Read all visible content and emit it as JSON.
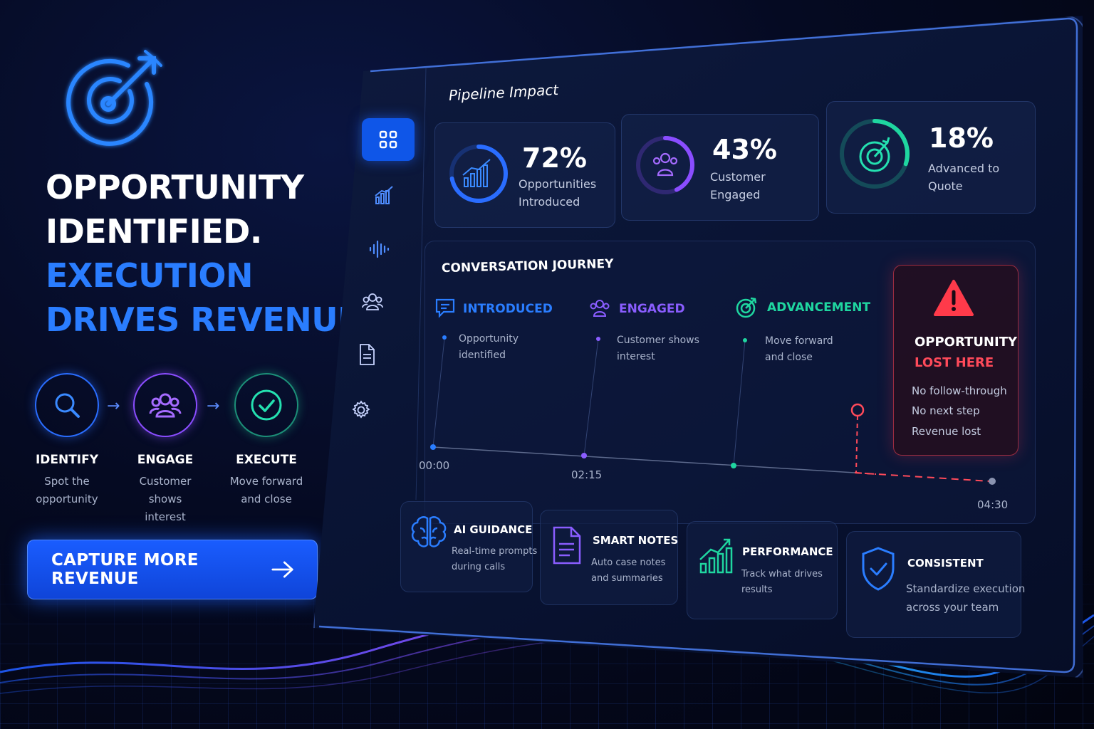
{
  "hero": {
    "headline_line1": "OPPORTUNITY",
    "headline_line2": "IDENTIFIED.",
    "headline_line3": "EXECUTION",
    "headline_line4": "DRIVES REVENUE.",
    "logo_icon": "target-arrow-icon"
  },
  "steps": [
    {
      "title": "IDENTIFY",
      "desc1": "Spot the",
      "desc2": "opportunity",
      "icon": "search-icon"
    },
    {
      "title": "ENGAGE",
      "desc1": "Customer shows",
      "desc2": "interest",
      "icon": "users-icon"
    },
    {
      "title": "EXECUTE",
      "desc1": "Move forward",
      "desc2": "and close",
      "icon": "check-circle-icon"
    }
  ],
  "cta": {
    "label": "CAPTURE MORE REVENUE",
    "icon": "arrow-right-icon"
  },
  "sidebar": {
    "items": [
      {
        "icon": "grid-icon",
        "active": true
      },
      {
        "icon": "bar-chart-icon",
        "active": false
      },
      {
        "icon": "waveform-icon",
        "active": false
      },
      {
        "icon": "users-icon",
        "active": false
      },
      {
        "icon": "document-icon",
        "active": false
      },
      {
        "icon": "gear-icon",
        "active": false
      }
    ]
  },
  "pipeline": {
    "title": "Pipeline Impact",
    "stats": [
      {
        "value": "72%",
        "label1": "Opportunities",
        "label2": "Introduced",
        "icon": "bar-chart-icon",
        "color": "#2a6dff",
        "progress": 0.72
      },
      {
        "value": "43%",
        "label1": "Customer",
        "label2": "Engaged",
        "icon": "users-icon",
        "color": "#8a4dff",
        "progress": 0.43
      },
      {
        "value": "18%",
        "label1": "Advanced to",
        "label2": "Quote",
        "icon": "target-icon",
        "color": "#1fd6a0",
        "progress": 0.18
      }
    ]
  },
  "journey": {
    "title": "CONVERSATION JOURNEY",
    "stages": [
      {
        "name": "INTRODUCED",
        "desc1": "Opportunity",
        "desc2": "identified",
        "icon": "chat-icon",
        "color": "#2a7dff"
      },
      {
        "name": "ENGAGED",
        "desc1": "Customer shows",
        "desc2": "interest",
        "icon": "users-icon",
        "color": "#8a5dff"
      },
      {
        "name": "ADVANCEMENT",
        "desc1": "Move forward",
        "desc2": "and close",
        "icon": "target-icon",
        "color": "#1fd6a0"
      }
    ],
    "times": [
      "00:00",
      "02:15",
      "04:30"
    ]
  },
  "lost": {
    "title1": "OPPORTUNITY",
    "title2": "LOST HERE",
    "items": [
      "No follow-through",
      "No next step",
      "Revenue lost"
    ],
    "icon": "warning-triangle-icon"
  },
  "features": [
    {
      "title": "AI GUIDANCE",
      "desc1": "Real-time prompts",
      "desc2": "during calls",
      "icon": "brain-icon",
      "color": "#2a7dff"
    },
    {
      "title": "SMART NOTES",
      "desc1": "Auto case notes",
      "desc2": "and summaries",
      "icon": "notes-icon",
      "color": "#8a5dff"
    },
    {
      "title": "PERFORMANCE",
      "desc1": "Track what drives",
      "desc2": "results",
      "icon": "growth-chart-icon",
      "color": "#1fd6a0"
    },
    {
      "title": "CONSISTENT",
      "desc1": "Standardize execution",
      "desc2": "across your team",
      "icon": "shield-check-icon",
      "color": "#2a7dff"
    }
  ],
  "colors": {
    "accent_blue": "#2a7dff",
    "accent_purple": "#8a5dff",
    "accent_green": "#1fd6a0",
    "alert_red": "#ff4a5a"
  }
}
